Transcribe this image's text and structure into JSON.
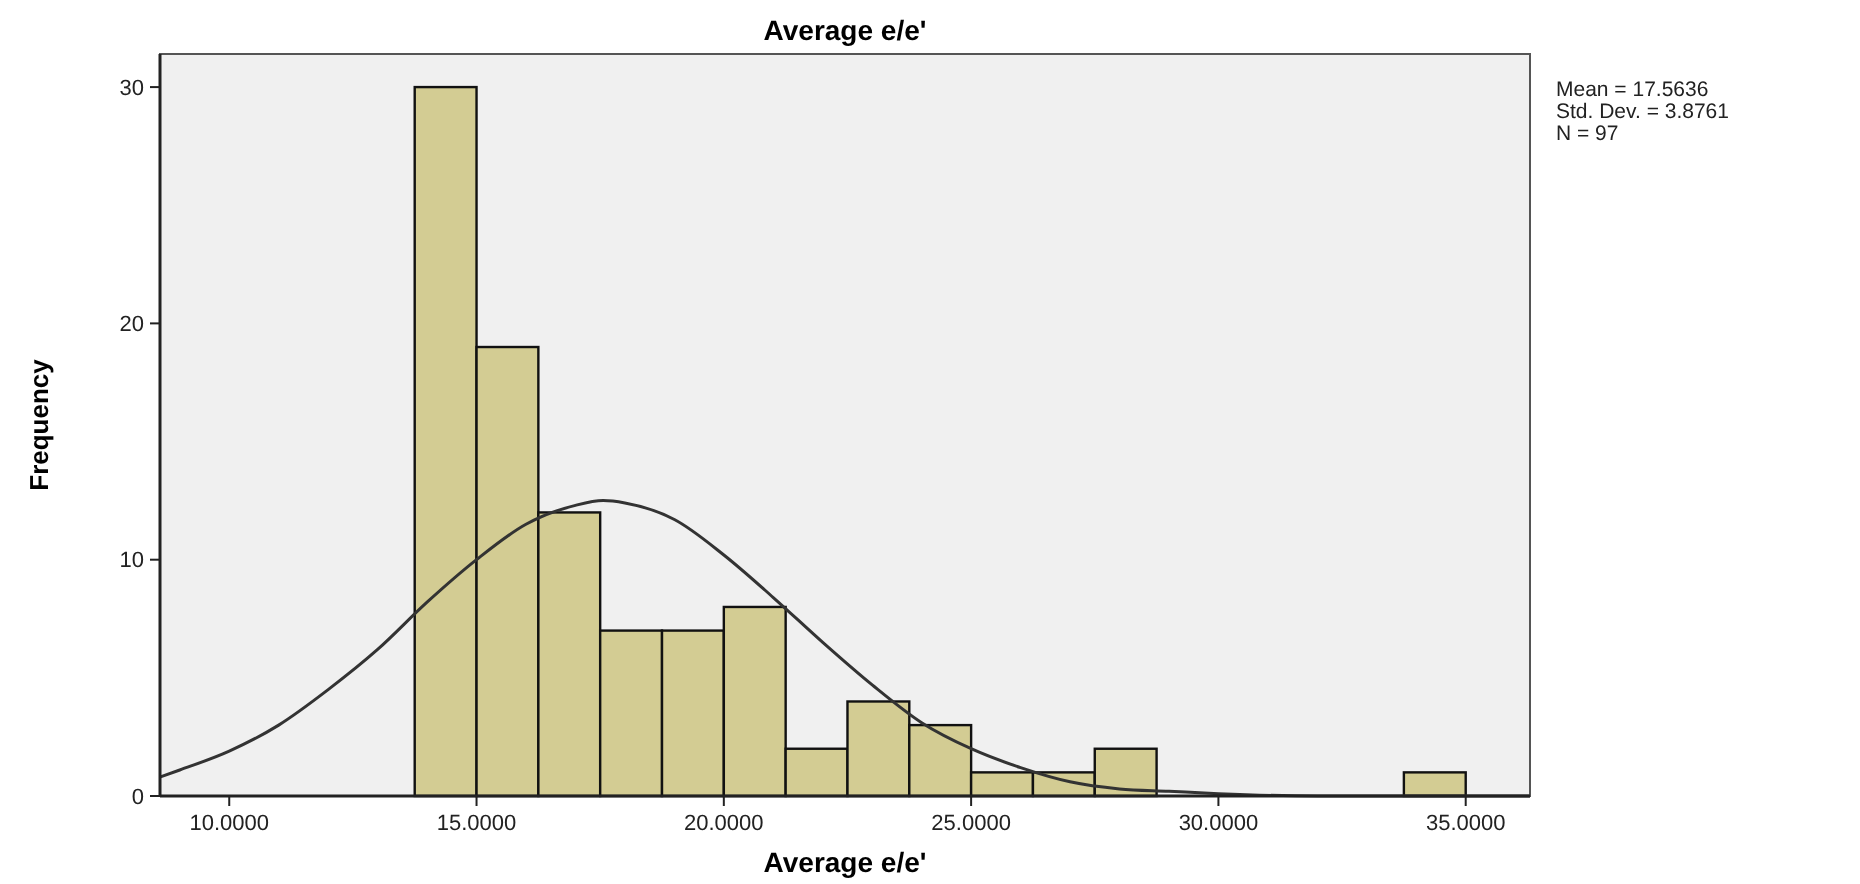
{
  "chart_data": {
    "type": "histogram",
    "title": "Average e/e'",
    "xlabel": "Average e/e'",
    "ylabel": "Frequency",
    "xlim": [
      8.6,
      36.3
    ],
    "ylim": [
      0,
      31.4
    ],
    "xticks": [
      {
        "value": 10,
        "label": "10.0000"
      },
      {
        "value": 15,
        "label": "15.0000"
      },
      {
        "value": 20,
        "label": "20.0000"
      },
      {
        "value": 25,
        "label": "25.0000"
      },
      {
        "value": 30,
        "label": "30.0000"
      },
      {
        "value": 35,
        "label": "35.0000"
      }
    ],
    "yticks": [
      0,
      10,
      20,
      30
    ],
    "series": [
      {
        "color": "#d3cc93",
        "bins": [
          13.75,
          15,
          16.25,
          17.5,
          18.75,
          20,
          21.25,
          22.5,
          23.75,
          25,
          26.25,
          27.5,
          28.75,
          30,
          31.25,
          32.5,
          33.75,
          35
        ],
        "values": [
          30,
          19,
          12,
          7,
          7,
          8,
          2,
          4,
          3,
          1,
          1,
          2,
          0,
          0,
          0,
          0,
          1
        ]
      },
      {
        "type": "line",
        "color": "#333333",
        "x": [
          8.6,
          9,
          10,
          11,
          12,
          13,
          14,
          15,
          16,
          17,
          17.56,
          18,
          19,
          20,
          21,
          22,
          23,
          24,
          25,
          26,
          27,
          28,
          29,
          30,
          32,
          34,
          36.3
        ],
        "values": [
          0.8,
          1.1,
          1.9,
          3.0,
          4.5,
          6.2,
          8.2,
          10.0,
          11.5,
          12.3,
          12.5,
          12.4,
          11.7,
          10.2,
          8.4,
          6.5,
          4.7,
          3.1,
          2.0,
          1.2,
          0.6,
          0.3,
          0.2,
          0.1,
          0,
          0,
          0
        ]
      }
    ],
    "annotations": [
      "Mean = 17.5636",
      "Std. Dev. = 3.8761",
      "N = 97"
    ]
  }
}
